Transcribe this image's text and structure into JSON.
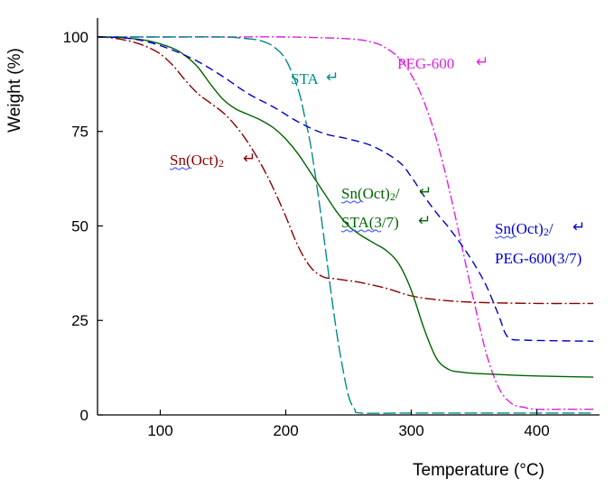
{
  "chart_data": {
    "type": "line",
    "title": "",
    "xlabel": "Temperature (°C)",
    "ylabel": "Weight (%)",
    "xlim": [
      50,
      450
    ],
    "ylim": [
      0,
      105
    ],
    "xticks": [
      100,
      200,
      300,
      400
    ],
    "yticks": [
      0,
      25,
      50,
      75,
      100
    ],
    "grid": false,
    "series": [
      {
        "name": "PEG-600",
        "color": "#e020e0",
        "dash": "10,3,2,3",
        "x": [
          50,
          100,
          150,
          200,
          250,
          270,
          280,
          290,
          300,
          310,
          320,
          330,
          340,
          350,
          360,
          370,
          380,
          390,
          400,
          420,
          445
        ],
        "y": [
          100,
          100,
          100,
          100,
          99.5,
          98.5,
          97,
          94.5,
          90,
          83,
          73,
          60,
          45,
          30,
          16,
          7,
          3,
          2,
          1.5,
          1.5,
          1.5
        ]
      },
      {
        "name": "STA",
        "color": "#008b8b",
        "dash": "14,4",
        "x": [
          50,
          100,
          150,
          170,
          180,
          190,
          200,
          210,
          215,
          220,
          225,
          230,
          235,
          240,
          245,
          250,
          255,
          260,
          300,
          350,
          400,
          445
        ],
        "y": [
          100,
          100,
          100,
          99.5,
          99,
          97.5,
          94,
          86,
          79,
          71,
          60,
          48,
          35,
          23,
          13,
          5,
          1.5,
          0.5,
          0.5,
          0.5,
          0.5,
          0.5
        ]
      },
      {
        "name": "Sn(Oct)2",
        "color": "#8b0000",
        "dash": "12,3,2,3",
        "x": [
          50,
          60,
          70,
          80,
          90,
          100,
          110,
          120,
          130,
          140,
          150,
          160,
          170,
          180,
          190,
          200,
          210,
          220,
          230,
          240,
          250,
          260,
          280,
          300,
          320,
          350,
          400,
          445
        ],
        "y": [
          100,
          99.8,
          99.3,
          98.5,
          97.3,
          95.5,
          92.5,
          88.5,
          85,
          82.5,
          80,
          76.5,
          72,
          66.5,
          60,
          52.5,
          44.5,
          39,
          36.5,
          36,
          35.5,
          35,
          33.5,
          31.5,
          30.5,
          29.8,
          29.5,
          29.5
        ]
      },
      {
        "name": "Sn(Oct)2/STA(3/7)",
        "color": "#006400",
        "dash": "",
        "x": [
          50,
          70,
          90,
          110,
          120,
          130,
          140,
          150,
          160,
          170,
          180,
          190,
          200,
          210,
          220,
          230,
          240,
          250,
          260,
          270,
          280,
          290,
          300,
          310,
          320,
          330,
          340,
          350,
          370,
          400,
          445
        ],
        "y": [
          100,
          99.8,
          99,
          97,
          95,
          92,
          87.5,
          83.5,
          81,
          79.5,
          78,
          76,
          73,
          69,
          64,
          59,
          54,
          50,
          47.5,
          45.5,
          43.5,
          40,
          33,
          23,
          15,
          12,
          11.3,
          11,
          10.7,
          10.3,
          10
        ]
      },
      {
        "name": "Sn(Oct)2/PEG-600(3/7)",
        "color": "#0000cc",
        "dash": "9,5",
        "x": [
          50,
          70,
          90,
          110,
          130,
          150,
          170,
          190,
          210,
          230,
          250,
          270,
          290,
          300,
          310,
          320,
          330,
          340,
          350,
          360,
          370,
          375,
          380,
          390,
          400,
          445
        ],
        "y": [
          100,
          99.8,
          98.7,
          96.5,
          93.5,
          89.5,
          85,
          81.5,
          77.5,
          74.5,
          73,
          71,
          67,
          63,
          58,
          53.5,
          49.5,
          45,
          40,
          34,
          26,
          21.5,
          20,
          19.8,
          19.7,
          19.5
        ]
      }
    ]
  },
  "labels": {
    "peg": "PEG-600",
    "sta": "STA",
    "sn_main": "Sn(Oct)",
    "sn_sub": "2",
    "sta_mix_line1_main": "Sn(Oct)",
    "sta_mix_line1_sub": "2",
    "sta_mix_line1_tail": "/",
    "sta_mix_line2": "STA(3/7)",
    "peg_mix_line1_main": "Sn(Oct)",
    "peg_mix_line1_sub": "2",
    "peg_mix_line1_tail": "/",
    "peg_mix_line2": "PEG-600(3/7)"
  }
}
